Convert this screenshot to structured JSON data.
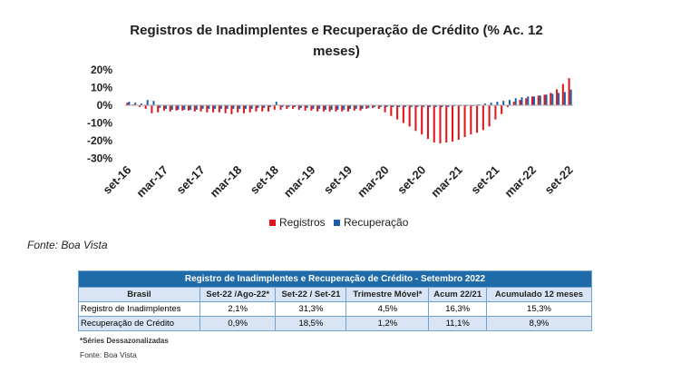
{
  "chart_data": {
    "type": "bar",
    "title": "Registros de Inadimplentes e Recuperação de Crédito (% Ac. 12 meses)",
    "title_lines": [
      "Registros de Inadimplentes e Recuperação de Crédito (% Ac. 12",
      "meses)"
    ],
    "ylim": [
      -30,
      20
    ],
    "yticks": [
      20,
      10,
      0,
      -10,
      -20,
      -30
    ],
    "ytick_labels": [
      "20%",
      "10%",
      "0%",
      "-10%",
      "-20%",
      "-30%"
    ],
    "xtick_labels": [
      "set-16",
      "mar-17",
      "set-17",
      "mar-18",
      "set-18",
      "mar-19",
      "set-19",
      "mar-20",
      "set-20",
      "mar-21",
      "set-21",
      "mar-22",
      "set-22"
    ],
    "legend_position": "bottom",
    "colors": {
      "registros": "#e0141b",
      "recuperacao": "#1f5fa8"
    },
    "series": [
      {
        "name": "Registros",
        "values": [
          1.5,
          0.5,
          -1,
          -2,
          -4.5,
          -4,
          -3,
          -3.5,
          -3,
          -3,
          -3,
          -3.5,
          -3.5,
          -4,
          -4,
          -4,
          -4.5,
          -5,
          -4,
          -4.5,
          -4,
          -3.5,
          -3.5,
          -3.5,
          -2.5,
          -2.5,
          -2,
          -2,
          -2.5,
          -3,
          -3,
          -3.5,
          -3.5,
          -3.5,
          -3.5,
          -3.5,
          -3.5,
          -3,
          -3,
          -2,
          -1.5,
          -2,
          -4,
          -6,
          -8,
          -10,
          -12,
          -14.5,
          -16.5,
          -19,
          -21,
          -21.5,
          -21,
          -20.5,
          -19.5,
          -18,
          -16.5,
          -15.5,
          -14,
          -12,
          -8,
          -5,
          -1,
          2,
          3,
          4,
          5,
          5.5,
          6,
          7,
          9,
          12,
          15.3
        ]
      },
      {
        "name": "Recuperação",
        "values": [
          2,
          1.5,
          1,
          3,
          2.5,
          -1.5,
          -2,
          -2.5,
          -2.5,
          -2.5,
          -2.5,
          -2.5,
          -2,
          -2,
          -2,
          -2,
          -2,
          -2,
          -2,
          -2,
          -2,
          -1.5,
          -1.5,
          -1,
          2,
          -1,
          -1,
          -1,
          -1.5,
          -1.5,
          -2,
          -2,
          -2.5,
          -2.5,
          -2.5,
          -2.5,
          -2,
          -2,
          -2,
          -1.5,
          -1,
          -1,
          -1,
          -1,
          -1,
          -1,
          -1,
          -1,
          -1,
          -1,
          -1,
          -1,
          -1,
          -0.5,
          -0.5,
          -0.5,
          -0.5,
          0.5,
          1,
          1.5,
          2,
          2.5,
          3,
          4,
          4.5,
          5,
          5,
          5.5,
          6,
          6.5,
          7,
          7.5,
          8.9
        ]
      }
    ]
  },
  "source_top": "Fonte: Boa Vista",
  "table": {
    "title": "Registro de Inadimplentes e Recuperação de Crédito - Setembro 2022",
    "headers": [
      "Brasil",
      "Set-22 /Ago-22*",
      "Set-22 / Set-21",
      "Trimestre Móvel*",
      "Acum 22/21",
      "Acumulado 12 meses"
    ],
    "rows": [
      [
        "Registro de Inadimplentes",
        "2,1%",
        "31,3%",
        "4,5%",
        "16,3%",
        "15,3%"
      ],
      [
        "Recuperação de Crédito",
        "0,9%",
        "18,5%",
        "1,2%",
        "11,1%",
        "8,9%"
      ]
    ]
  },
  "note": "*Séries Dessazonalizadas",
  "source_bottom": "Fonte: Boa Vista"
}
